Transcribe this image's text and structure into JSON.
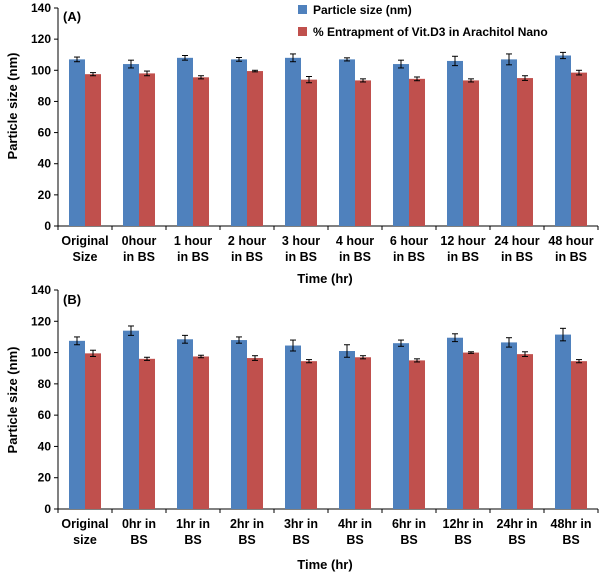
{
  "colors": {
    "series1": "#4f81bd",
    "series2": "#c0504d"
  },
  "legend": {
    "series1": "Particle size (nm)",
    "series2": "% Entrapment of Vit.D3 in Arachitol Nano"
  },
  "chart_data": [
    {
      "type": "bar",
      "panel_label": "(A)",
      "xlabel": "Time (hr)",
      "ylabel": "Particle size (nm)",
      "ylim": [
        0,
        140
      ],
      "yticks": [
        0,
        20,
        40,
        60,
        80,
        100,
        120,
        140
      ],
      "categories": [
        [
          "Original",
          "Size"
        ],
        [
          "0hour",
          "in BS"
        ],
        [
          "1 hour",
          "in BS"
        ],
        [
          "2 hour",
          "in BS"
        ],
        [
          "3 hour",
          "in BS"
        ],
        [
          "4 hour",
          "in  BS"
        ],
        [
          "6 hour",
          "in BS"
        ],
        [
          "12 hour",
          "in BS"
        ],
        [
          "24 hour",
          "in BS"
        ],
        [
          "48 hour",
          "in BS"
        ]
      ],
      "series": [
        {
          "name": "Particle size (nm)",
          "values": [
            107,
            104,
            108,
            107,
            108,
            107,
            104,
            106,
            107,
            109.5
          ],
          "errors": [
            1.5,
            2.5,
            1.5,
            1.2,
            2.5,
            1.0,
            2.5,
            3.0,
            3.5,
            2.0
          ]
        },
        {
          "name": "% Entrapment of Vit.D3 in Arachitol Nano",
          "values": [
            97.5,
            98,
            95.5,
            99.5,
            94,
            93.5,
            94.5,
            93.5,
            95,
            98.5
          ],
          "errors": [
            1.0,
            1.5,
            1.0,
            0.5,
            2.0,
            1.0,
            1.2,
            1.0,
            1.5,
            1.5
          ]
        }
      ]
    },
    {
      "type": "bar",
      "panel_label": "(B)",
      "xlabel": "Time (hr)",
      "ylabel": "Particle size (nm)",
      "ylim": [
        0,
        140
      ],
      "yticks": [
        0,
        20,
        40,
        60,
        80,
        100,
        120,
        140
      ],
      "categories": [
        [
          "Original",
          "size"
        ],
        [
          "0hr in",
          "BS"
        ],
        [
          "1hr in",
          "BS"
        ],
        [
          "2hr in",
          "BS"
        ],
        [
          "3hr in",
          "BS"
        ],
        [
          "4hr in",
          "BS"
        ],
        [
          "6hr in",
          "BS"
        ],
        [
          "12hr in",
          "BS"
        ],
        [
          "24hr in",
          "BS"
        ],
        [
          "48hr in",
          "BS"
        ]
      ],
      "series": [
        {
          "name": "Particle size (nm)",
          "values": [
            107.5,
            114,
            108.5,
            108,
            104.5,
            101,
            106,
            109.5,
            106.5,
            111.5
          ],
          "errors": [
            2.5,
            3.0,
            2.5,
            2.0,
            3.5,
            4.0,
            2.0,
            2.5,
            3.0,
            4.0
          ]
        },
        {
          "name": "% Entrapment of Vit.D3 in Arachitol Nano",
          "values": [
            99.5,
            96,
            97.5,
            96.5,
            94.5,
            97,
            95,
            100,
            99,
            94.5
          ],
          "errors": [
            2.0,
            1.0,
            0.8,
            1.5,
            1.0,
            1.0,
            1.0,
            0.5,
            1.5,
            1.0
          ]
        }
      ]
    }
  ]
}
